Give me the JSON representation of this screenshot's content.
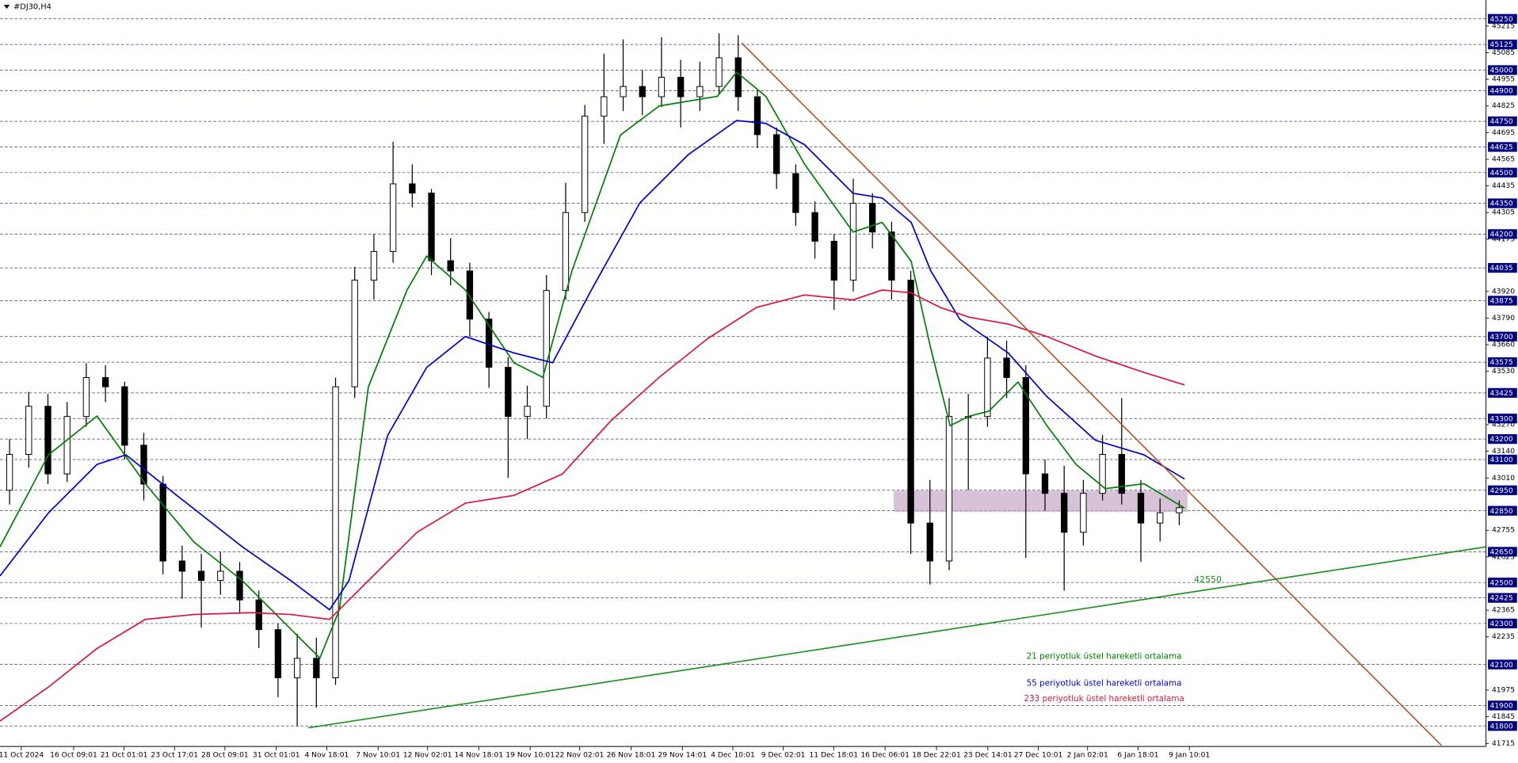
{
  "chart_data": {
    "type": "candlestick",
    "title": "#DJ30,H4",
    "candle_color": "#000000",
    "open": [
      42950,
      43125,
      43360,
      43030,
      43310,
      43500,
      43455,
      43170,
      42980,
      42605,
      42555,
      42510,
      42555,
      42415,
      42270,
      42035,
      42130,
      42035,
      43455,
      43975,
      44115,
      44445,
      44400,
      44070,
      44020,
      43785,
      43550,
      43310,
      43360,
      43925,
      44305,
      44775,
      44870,
      44920,
      44870,
      44965,
      44870,
      44920,
      45060,
      44870,
      44685,
      44495,
      44305,
      44165,
      43975,
      44350,
      44210,
      43975,
      42790,
      42605,
      43310,
      43310,
      43595,
      43500,
      43030,
      42935,
      42745,
      42935,
      43125,
      42935,
      42790,
      42840
    ],
    "high": [
      43200,
      43430,
      43420,
      43380,
      43570,
      43560,
      43480,
      43230,
      43020,
      42680,
      42640,
      42650,
      42600,
      42460,
      42300,
      42250,
      42230,
      43500,
      44040,
      44200,
      44650,
      44540,
      44420,
      44180,
      44060,
      43820,
      43600,
      43460,
      44000,
      44450,
      44830,
      45080,
      45150,
      45000,
      45160,
      45050,
      45040,
      45180,
      45170,
      44900,
      44720,
      44540,
      44360,
      44200,
      44470,
      44400,
      44260,
      44020,
      43000,
      43400,
      43420,
      43700,
      43680,
      43560,
      43100,
      43070,
      43000,
      43220,
      43400,
      43000,
      42910,
      42900
    ],
    "low": [
      42880,
      43060,
      42980,
      42990,
      43260,
      43380,
      43100,
      42900,
      42540,
      42420,
      42280,
      42440,
      42350,
      42180,
      41940,
      41800,
      41890,
      42000,
      43400,
      43880,
      44060,
      44330,
      44000,
      43950,
      43700,
      43450,
      43010,
      43200,
      43300,
      43880,
      44260,
      44640,
      44800,
      44780,
      44820,
      44720,
      44800,
      44880,
      44800,
      44620,
      44420,
      44240,
      44080,
      43830,
      43920,
      44130,
      43880,
      42640,
      42490,
      42560,
      42950,
      43260,
      43400,
      42620,
      42850,
      42460,
      42680,
      42900,
      42880,
      42600,
      42700,
      42780
    ],
    "close": [
      43125,
      43360,
      43030,
      43310,
      43500,
      43455,
      43170,
      42980,
      42605,
      42555,
      42510,
      42555,
      42415,
      42270,
      42035,
      42130,
      42035,
      43455,
      43975,
      44115,
      44445,
      44400,
      44070,
      44020,
      43785,
      43550,
      43310,
      43360,
      43925,
      44305,
      44775,
      44870,
      44920,
      44870,
      44965,
      44870,
      44920,
      45060,
      44870,
      44685,
      44495,
      44305,
      44165,
      43975,
      44350,
      44210,
      43975,
      42790,
      42605,
      43310,
      43310,
      43595,
      43500,
      43030,
      42935,
      42745,
      42935,
      43125,
      42935,
      42790,
      42840,
      42865
    ],
    "series": [
      {
        "name": "21 periyotluk üstel hareketli ortalama",
        "color": "#008000",
        "x": [
          -0.5,
          2.03,
          4.56,
          7.08,
          9.61,
          12.14,
          14.67,
          16.18,
          17.2,
          18.71,
          20.73,
          21.75,
          23.77,
          26.3,
          27.81,
          29.33,
          31.86,
          33.88,
          36.91,
          37.92,
          39.44,
          41.46,
          43.99,
          45.51,
          47.02,
          48.04,
          49.05,
          50.06,
          51.07,
          52.59,
          54.1,
          55.62,
          57.14,
          59.16,
          61.28
        ],
        "values": [
          42674,
          43123,
          43312,
          42982,
          42698,
          42509,
          42272,
          42131,
          42367,
          43454,
          43927,
          44092,
          43927,
          43572,
          43501,
          44021,
          44683,
          44825,
          44872,
          44990,
          44872,
          44541,
          44210,
          44257,
          44068,
          43643,
          43265,
          43312,
          43336,
          43478,
          43265,
          43076,
          42958,
          42982,
          42863
        ]
      },
      {
        "name": "55 periyotluk üstel hareketli ortalama",
        "color": "#0000cd",
        "x": [
          -0.5,
          2.03,
          4.56,
          6.07,
          8.6,
          12.14,
          14.67,
          16.69,
          17.7,
          19.72,
          21.75,
          23.77,
          26.3,
          28.32,
          30.34,
          32.87,
          35.4,
          37.92,
          39.44,
          41.46,
          43.99,
          45.51,
          47.02,
          48.04,
          49.55,
          52.08,
          54.1,
          56.63,
          59.16,
          61.28
        ],
        "values": [
          42532,
          42840,
          43076,
          43123,
          42934,
          42674,
          42509,
          42367,
          42509,
          43218,
          43549,
          43700,
          43620,
          43572,
          43927,
          44352,
          44588,
          44754,
          44740,
          44636,
          44399,
          44376,
          44257,
          44021,
          43785,
          43620,
          43407,
          43194,
          43123,
          43005
        ]
      },
      {
        "name": "233 periyotluk üstel hareketli ortalama",
        "color": "#dc143c",
        "x": [
          -0.5,
          2.03,
          4.56,
          7.08,
          9.61,
          12.65,
          14.67,
          16.69,
          18.71,
          21.25,
          23.77,
          26.3,
          28.83,
          31.36,
          33.88,
          36.41,
          38.95,
          41.46,
          43.99,
          45.51,
          47.02,
          48.54,
          50.06,
          52.08,
          54.1,
          56.63,
          59.16,
          61.28
        ],
        "values": [
          41824,
          41990,
          42178,
          42320,
          42344,
          42353,
          42344,
          42320,
          42509,
          42745,
          42887,
          42925,
          43029,
          43289,
          43501,
          43690,
          43842,
          43903,
          43879,
          43927,
          43913,
          43842,
          43794,
          43761,
          43700,
          43605,
          43525,
          43464
        ]
      }
    ],
    "trendlines": [
      {
        "color": "#b4501e",
        "x": [
          38.18,
          74.68
        ],
        "values": [
          45132,
          41705
        ]
      },
      {
        "color": "#159015",
        "x": [
          15.58,
          77
        ],
        "values": [
          41791,
          42674
        ]
      }
    ],
    "trendline_label": 42550,
    "zone": {
      "color": "#c8a8c8",
      "x": [
        46.11,
        61.43
      ],
      "values": [
        42948,
        42844
      ]
    },
    "xlim": [
      -0.5,
      77
    ],
    "ylim": [
      41700,
      45285
    ],
    "price_levels": [
      45250,
      45125,
      45000,
      44900,
      44750,
      44625,
      44500,
      44350,
      44200,
      44035,
      43875,
      43700,
      43575,
      43425,
      43300,
      43200,
      43100,
      42950,
      42850,
      42650,
      42500,
      42425,
      42300,
      42100,
      41900,
      41800
    ],
    "yticks": [
      45215,
      45085,
      44955,
      44825,
      44695,
      44565,
      44435,
      44305,
      44175,
      43920,
      43790,
      43660,
      43530,
      43270,
      43140,
      43010,
      42755,
      42625,
      42365,
      42235,
      41975,
      41845,
      41715
    ],
    "xticks": [
      {
        "value": 0.61,
        "label": "11 Oct 2024"
      },
      {
        "value": 3.34,
        "label": "16 Oct 09:01"
      },
      {
        "value": 5.97,
        "label": "21 Oct 01:01"
      },
      {
        "value": 8.6,
        "label": "23 Oct 17:01"
      },
      {
        "value": 11.23,
        "label": "28 Oct 09:01"
      },
      {
        "value": 13.91,
        "label": "31 Oct 01:01"
      },
      {
        "value": 16.54,
        "label": "4 Nov 18:01"
      },
      {
        "value": 19.22,
        "label": "7 Nov 10:01"
      },
      {
        "value": 21.8,
        "label": "12 Nov 02:01"
      },
      {
        "value": 24.47,
        "label": "14 Nov 18:01"
      },
      {
        "value": 27.15,
        "label": "19 Nov 10:01"
      },
      {
        "value": 29.73,
        "label": "22 Nov 02:01"
      },
      {
        "value": 32.41,
        "label": "26 Nov 18:01"
      },
      {
        "value": 35.09,
        "label": "29 Nov 14:01"
      },
      {
        "value": 37.72,
        "label": "4 Dec 10:01"
      },
      {
        "value": 40.35,
        "label": "9 Dec 02:01"
      },
      {
        "value": 42.98,
        "label": "11 Dec 18:01"
      },
      {
        "value": 45.66,
        "label": "16 Dec 06:01"
      },
      {
        "value": 48.34,
        "label": "18 Dec 22:01"
      },
      {
        "value": 51.02,
        "label": "23 Dec 14:01"
      },
      {
        "value": 53.65,
        "label": "27 Dec 10:01"
      },
      {
        "value": 56.22,
        "label": "2 Jan 02:01"
      },
      {
        "value": 58.85,
        "label": "6 Jan 18:01"
      },
      {
        "value": 61.53,
        "label": "9 Jan 10:01"
      }
    ]
  }
}
